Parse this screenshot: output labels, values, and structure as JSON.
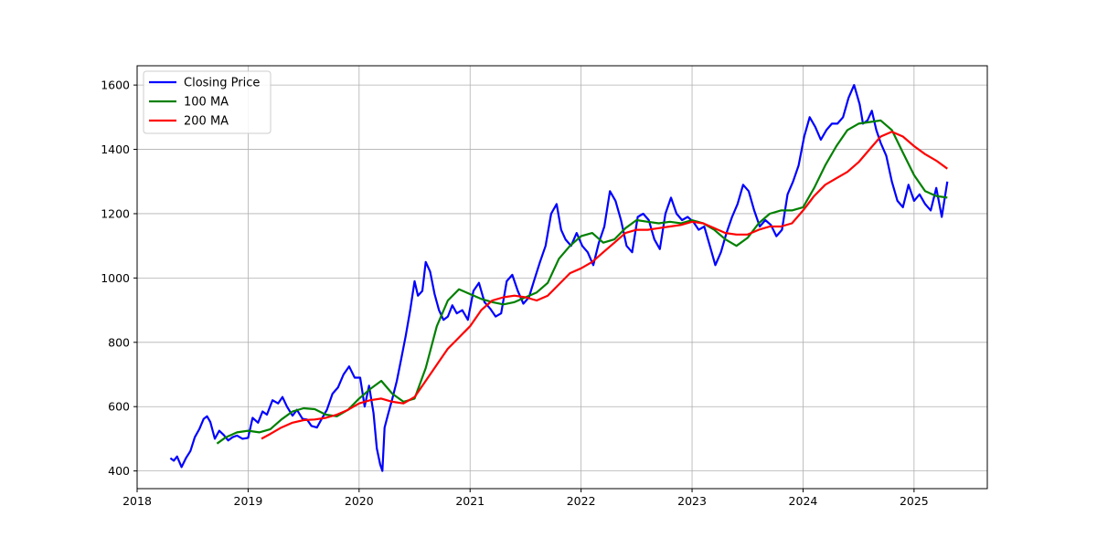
{
  "chart_data": {
    "type": "line",
    "title": "",
    "xlabel": "",
    "ylabel": "",
    "grid": true,
    "legend_position": "top-left",
    "xlim": [
      2018.0,
      2025.66
    ],
    "ylim": [
      345,
      1660
    ],
    "xticks": [
      2018,
      2019,
      2020,
      2021,
      2022,
      2023,
      2024,
      2025
    ],
    "xtick_labels": [
      "2018",
      "2019",
      "2020",
      "2021",
      "2022",
      "2023",
      "2024",
      "2025"
    ],
    "yticks": [
      400,
      600,
      800,
      1000,
      1200,
      1400,
      1600
    ],
    "ytick_labels": [
      "400",
      "600",
      "800",
      "1000",
      "1200",
      "1400",
      "1600"
    ],
    "series": [
      {
        "name": "Closing Price",
        "color": "#0000ff",
        "x": [
          2018.3,
          2018.33,
          2018.36,
          2018.4,
          2018.44,
          2018.48,
          2018.52,
          2018.56,
          2018.6,
          2018.63,
          2018.66,
          2018.7,
          2018.74,
          2018.78,
          2018.82,
          2018.86,
          2018.9,
          2018.95,
          2019.0,
          2019.04,
          2019.09,
          2019.13,
          2019.17,
          2019.22,
          2019.27,
          2019.31,
          2019.35,
          2019.4,
          2019.44,
          2019.49,
          2019.53,
          2019.57,
          2019.62,
          2019.66,
          2019.71,
          2019.76,
          2019.81,
          2019.86,
          2019.91,
          2019.96,
          2020.01,
          2020.05,
          2020.09,
          2020.13,
          2020.16,
          2020.19,
          2020.21,
          2020.23,
          2020.26,
          2020.3,
          2020.34,
          2020.38,
          2020.42,
          2020.46,
          2020.5,
          2020.53,
          2020.57,
          2020.6,
          2020.64,
          2020.68,
          2020.72,
          2020.76,
          2020.8,
          2020.84,
          2020.88,
          2020.93,
          2020.98,
          2021.03,
          2021.08,
          2021.13,
          2021.18,
          2021.23,
          2021.28,
          2021.33,
          2021.38,
          2021.43,
          2021.48,
          2021.53,
          2021.58,
          2021.63,
          2021.68,
          2021.73,
          2021.78,
          2021.82,
          2021.86,
          2021.91,
          2021.96,
          2022.01,
          2022.06,
          2022.11,
          2022.16,
          2022.21,
          2022.26,
          2022.31,
          2022.36,
          2022.41,
          2022.46,
          2022.51,
          2022.56,
          2022.61,
          2022.66,
          2022.71,
          2022.76,
          2022.81,
          2022.86,
          2022.91,
          2022.96,
          2023.01,
          2023.06,
          2023.11,
          2023.16,
          2023.21,
          2023.26,
          2023.31,
          2023.36,
          2023.41,
          2023.46,
          2023.51,
          2023.56,
          2023.61,
          2023.66,
          2023.71,
          2023.76,
          2023.81,
          2023.86,
          2023.91,
          2023.96,
          2024.01,
          2024.06,
          2024.11,
          2024.16,
          2024.21,
          2024.26,
          2024.31,
          2024.36,
          2024.41,
          2024.46,
          2024.51,
          2024.54,
          2024.58,
          2024.62,
          2024.66,
          2024.7,
          2024.75,
          2024.8,
          2024.85,
          2024.9,
          2024.95,
          2025.0,
          2025.05,
          2025.1,
          2025.15,
          2025.2,
          2025.25,
          2025.3
        ],
        "values": [
          440,
          432,
          445,
          412,
          440,
          462,
          505,
          530,
          562,
          570,
          552,
          500,
          525,
          512,
          495,
          505,
          510,
          500,
          503,
          565,
          550,
          585,
          575,
          620,
          610,
          630,
          600,
          572,
          590,
          562,
          560,
          540,
          535,
          560,
          590,
          640,
          660,
          700,
          725,
          690,
          690,
          600,
          665,
          580,
          470,
          420,
          400,
          535,
          575,
          625,
          680,
          750,
          820,
          900,
          990,
          945,
          960,
          1050,
          1020,
          950,
          900,
          870,
          880,
          915,
          890,
          900,
          870,
          960,
          985,
          925,
          905,
          880,
          890,
          990,
          1010,
          960,
          920,
          940,
          995,
          1050,
          1100,
          1200,
          1230,
          1150,
          1120,
          1100,
          1140,
          1100,
          1080,
          1040,
          1110,
          1160,
          1270,
          1240,
          1180,
          1100,
          1080,
          1190,
          1200,
          1180,
          1120,
          1090,
          1200,
          1250,
          1200,
          1180,
          1190,
          1175,
          1150,
          1160,
          1100,
          1040,
          1080,
          1140,
          1190,
          1230,
          1290,
          1270,
          1210,
          1160,
          1180,
          1165,
          1130,
          1150,
          1260,
          1300,
          1350,
          1440,
          1500,
          1470,
          1430,
          1460,
          1480,
          1480,
          1500,
          1560,
          1600,
          1540,
          1480,
          1490,
          1520,
          1460,
          1420,
          1380,
          1300,
          1240,
          1220,
          1290,
          1240,
          1260,
          1230,
          1210,
          1280,
          1190,
          1300
        ]
      },
      {
        "name": "100 MA",
        "color": "#008000",
        "x": [
          2018.72,
          2018.8,
          2018.9,
          2019.0,
          2019.1,
          2019.2,
          2019.3,
          2019.4,
          2019.5,
          2019.6,
          2019.7,
          2019.8,
          2019.9,
          2020.0,
          2020.1,
          2020.2,
          2020.3,
          2020.4,
          2020.5,
          2020.6,
          2020.7,
          2020.8,
          2020.9,
          2021.0,
          2021.1,
          2021.2,
          2021.3,
          2021.4,
          2021.5,
          2021.6,
          2021.7,
          2021.8,
          2021.9,
          2022.0,
          2022.1,
          2022.2,
          2022.3,
          2022.4,
          2022.5,
          2022.6,
          2022.7,
          2022.8,
          2022.9,
          2023.0,
          2023.1,
          2023.2,
          2023.3,
          2023.4,
          2023.5,
          2023.6,
          2023.7,
          2023.8,
          2023.9,
          2024.0,
          2024.1,
          2024.2,
          2024.3,
          2024.4,
          2024.5,
          2024.6,
          2024.7,
          2024.8,
          2024.9,
          2025.0,
          2025.1,
          2025.2,
          2025.3
        ],
        "values": [
          485,
          505,
          520,
          525,
          520,
          530,
          560,
          585,
          595,
          592,
          575,
          570,
          590,
          625,
          655,
          680,
          640,
          615,
          625,
          720,
          850,
          930,
          965,
          950,
          935,
          925,
          918,
          925,
          940,
          955,
          985,
          1060,
          1100,
          1130,
          1140,
          1110,
          1120,
          1155,
          1180,
          1175,
          1170,
          1175,
          1170,
          1180,
          1170,
          1150,
          1120,
          1100,
          1125,
          1170,
          1200,
          1210,
          1210,
          1220,
          1280,
          1350,
          1410,
          1460,
          1480,
          1485,
          1490,
          1460,
          1390,
          1320,
          1270,
          1255,
          1250
        ]
      },
      {
        "name": "200 MA",
        "color": "#ff0000",
        "x": [
          2019.12,
          2019.2,
          2019.3,
          2019.4,
          2019.5,
          2019.6,
          2019.7,
          2019.8,
          2019.9,
          2020.0,
          2020.1,
          2020.2,
          2020.3,
          2020.4,
          2020.5,
          2020.6,
          2020.7,
          2020.8,
          2020.9,
          2021.0,
          2021.1,
          2021.2,
          2021.3,
          2021.4,
          2021.5,
          2021.6,
          2021.7,
          2021.8,
          2021.9,
          2022.0,
          2022.1,
          2022.2,
          2022.3,
          2022.4,
          2022.5,
          2022.6,
          2022.7,
          2022.8,
          2022.9,
          2023.0,
          2023.1,
          2023.2,
          2023.3,
          2023.4,
          2023.5,
          2023.6,
          2023.7,
          2023.8,
          2023.9,
          2024.0,
          2024.1,
          2024.2,
          2024.3,
          2024.4,
          2024.5,
          2024.6,
          2024.7,
          2024.8,
          2024.9,
          2025.0,
          2025.1,
          2025.2,
          2025.3
        ],
        "values": [
          500,
          515,
          535,
          550,
          558,
          560,
          565,
          575,
          590,
          610,
          620,
          625,
          615,
          610,
          630,
          680,
          730,
          780,
          815,
          850,
          900,
          930,
          940,
          945,
          940,
          930,
          945,
          980,
          1015,
          1030,
          1050,
          1080,
          1110,
          1140,
          1150,
          1150,
          1155,
          1160,
          1165,
          1175,
          1170,
          1155,
          1140,
          1135,
          1135,
          1150,
          1160,
          1160,
          1170,
          1210,
          1255,
          1290,
          1310,
          1330,
          1360,
          1400,
          1440,
          1455,
          1440,
          1410,
          1385,
          1365,
          1340
        ]
      }
    ]
  }
}
